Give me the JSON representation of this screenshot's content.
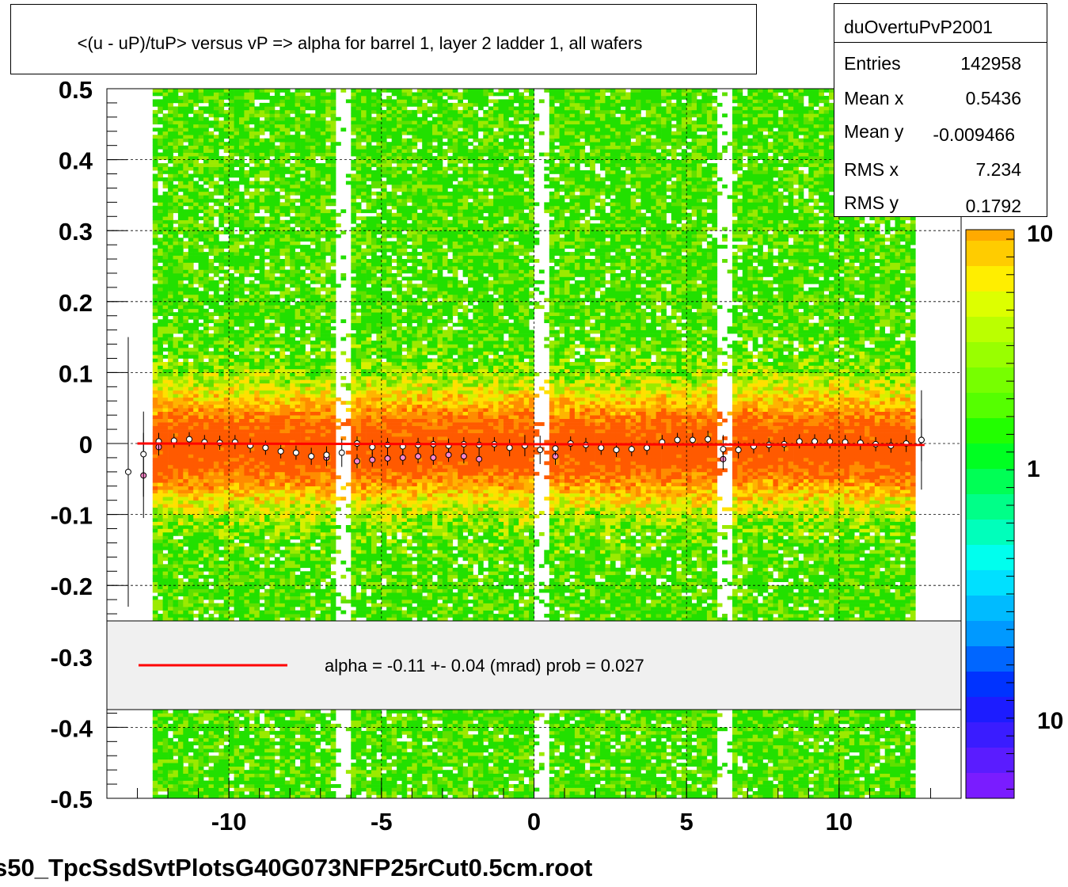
{
  "title": "<(u - uP)/tuP> versus   vP => alpha for barrel 1, layer 2 ladder 1, all wafers",
  "stats": {
    "name": "duOvertuPvP2001",
    "rows": [
      {
        "key": "Entries",
        "value": "142958"
      },
      {
        "key": "Mean x",
        "value": "0.5436"
      },
      {
        "key": "Mean y",
        "value": "-0.009466"
      },
      {
        "key": "RMS x",
        "value": "7.234"
      },
      {
        "key": "RMS y",
        "value": "0.1792"
      }
    ]
  },
  "legend": {
    "fit_label": "alpha =   -0.11 +-  0.04 (mrad) prob = 0.027",
    "fit_color": "#ff0000"
  },
  "footer": "s50_TpcSsdSvtPlotsG40G073NFP25rCut0.5cm.root",
  "colorbar_labels": [
    "10",
    "1",
    "10"
  ],
  "chart_data": {
    "type": "heatmap",
    "title": "<(u - uP)/tuP> versus   vP => alpha for barrel 1, layer 2 ladder 1, all wafers",
    "xlabel": "",
    "ylabel": "",
    "xlim": [
      -14,
      14
    ],
    "ylim": [
      -0.5,
      0.5
    ],
    "x_ticks": [
      -10,
      -5,
      0,
      5,
      10
    ],
    "x_tick_labels": [
      "-10",
      "-5",
      "0",
      "5",
      "10"
    ],
    "y_ticks": [
      -0.5,
      -0.4,
      -0.3,
      -0.2,
      -0.1,
      0,
      0.1,
      0.2,
      0.3,
      0.4,
      0.5
    ],
    "y_tick_labels": [
      "-0.5",
      "-0.4",
      "-0.3",
      "-0.2",
      "-0.1",
      "0",
      "0.1",
      "0.2",
      "0.3",
      "0.4",
      "0.5"
    ],
    "grid": true,
    "data_x_range": [
      -12.5,
      12.5
    ],
    "empty_x_bands": [
      [
        -6.5,
        -6.0
      ],
      [
        0.0,
        0.5
      ],
      [
        6.0,
        6.5
      ]
    ],
    "fit_line": {
      "x": [
        -13.0,
        12.8
      ],
      "y": [
        0.0,
        -0.002
      ],
      "color": "#ff0000"
    },
    "profile_black": {
      "x": [
        -13.3,
        -12.8,
        -12.3,
        -11.8,
        -11.3,
        -10.8,
        -10.3,
        -9.8,
        -9.3,
        -8.8,
        -8.3,
        -7.8,
        -7.3,
        -6.8,
        -6.3,
        -5.8,
        -5.3,
        -4.8,
        -4.3,
        -3.8,
        -3.3,
        -2.8,
        -2.3,
        -1.8,
        -1.3,
        -0.8,
        -0.3,
        0.2,
        0.7,
        1.2,
        1.7,
        2.2,
        2.7,
        3.2,
        3.7,
        4.2,
        4.7,
        5.2,
        5.7,
        6.2,
        6.7,
        7.2,
        7.7,
        8.2,
        8.7,
        9.2,
        9.7,
        10.2,
        10.7,
        11.2,
        11.7,
        12.2,
        12.7
      ],
      "y": [
        -0.04,
        -0.015,
        0.003,
        0.004,
        0.006,
        0.002,
        0.001,
        0.002,
        -0.003,
        -0.006,
        -0.011,
        -0.013,
        -0.018,
        -0.016,
        -0.013,
        0.0,
        -0.005,
        -0.002,
        -0.004,
        -0.002,
        -0.001,
        -0.003,
        -0.001,
        -0.002,
        -0.001,
        -0.006,
        -0.003,
        -0.009,
        -0.007,
        0.0,
        -0.002,
        -0.006,
        -0.009,
        -0.008,
        -0.006,
        0.002,
        0.005,
        0.005,
        0.006,
        -0.008,
        -0.009,
        -0.004,
        -0.002,
        -0.001,
        0.003,
        0.003,
        0.003,
        0.002,
        0.001,
        -0.001,
        -0.003,
        0.0,
        0.005
      ],
      "errors": [
        0.19,
        0.06,
        0.012,
        0.01,
        0.01,
        0.01,
        0.01,
        0.01,
        0.01,
        0.01,
        0.01,
        0.01,
        0.012,
        0.012,
        0.02,
        0.01,
        0.01,
        0.01,
        0.01,
        0.01,
        0.01,
        0.01,
        0.01,
        0.01,
        0.01,
        0.012,
        0.015,
        0.02,
        0.01,
        0.01,
        0.01,
        0.01,
        0.01,
        0.01,
        0.01,
        0.01,
        0.01,
        0.01,
        0.012,
        0.02,
        0.012,
        0.01,
        0.01,
        0.01,
        0.01,
        0.01,
        0.01,
        0.01,
        0.01,
        0.01,
        0.01,
        0.012,
        0.07
      ]
    },
    "profile_pink": {
      "x": [
        -12.8,
        -12.3,
        -6.8,
        -5.8,
        -5.3,
        -4.8,
        -4.3,
        -3.8,
        -3.3,
        -2.8,
        -2.3,
        -1.8,
        0.7,
        6.2,
        12.7
      ],
      "y": [
        -0.045,
        -0.005,
        -0.02,
        -0.025,
        -0.023,
        -0.021,
        -0.02,
        -0.018,
        -0.02,
        -0.016,
        -0.018,
        -0.022,
        -0.018,
        -0.022,
        0.005
      ],
      "errors": [
        0.06,
        0.012,
        0.012,
        0.01,
        0.01,
        0.01,
        0.01,
        0.01,
        0.01,
        0.01,
        0.01,
        0.01,
        0.012,
        0.015,
        0.03
      ]
    },
    "colorbar_labels": [
      "10",
      "1",
      "10"
    ]
  }
}
